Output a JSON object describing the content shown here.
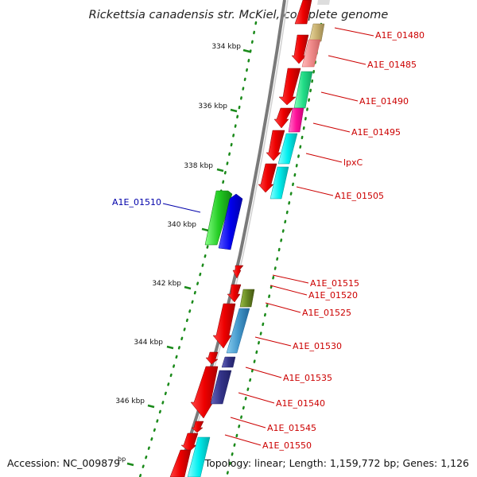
{
  "title": "Rickettsia canadensis str. McKiel, complete genome",
  "footer": {
    "accession": "Accession: NC_009879",
    "unit": "bp",
    "summary": "Topology: linear; Length: 1,159,772 bp; Genes: 1,126"
  },
  "ticks": [
    "334 kbp",
    "336 kbp",
    "338 kbp",
    "340 kbp",
    "342 kbp",
    "344 kbp",
    "346 kbp"
  ],
  "gene_labels": [
    {
      "text": "A1E_01480",
      "color": "#cc0000"
    },
    {
      "text": "A1E_01485",
      "color": "#cc0000"
    },
    {
      "text": "A1E_01490",
      "color": "#cc0000"
    },
    {
      "text": "A1E_01495",
      "color": "#cc0000"
    },
    {
      "text": "lpxC",
      "color": "#cc0000"
    },
    {
      "text": "A1E_01505",
      "color": "#cc0000"
    },
    {
      "text": "A1E_01510",
      "color": "#0000aa"
    },
    {
      "text": "A1E_01515",
      "color": "#cc0000"
    },
    {
      "text": "A1E_01520",
      "color": "#cc0000"
    },
    {
      "text": "A1E_01525",
      "color": "#cc0000"
    },
    {
      "text": "A1E_01530",
      "color": "#cc0000"
    },
    {
      "text": "A1E_01535",
      "color": "#cc0000"
    },
    {
      "text": "A1E_01540",
      "color": "#cc0000"
    },
    {
      "text": "A1E_01545",
      "color": "#cc0000"
    },
    {
      "text": "A1E_01550",
      "color": "#cc0000"
    }
  ],
  "colors": {
    "cds": "#ee0000",
    "backbone": "#7a7a7a",
    "gc_dots": "#1a8a1a",
    "olive": "#c8b070",
    "salmon": "#f08a8a",
    "mint": "#22dd88",
    "magenta": "#ff1199",
    "cyan": "#00eeee",
    "green": "#22cc22",
    "blue": "#0000ee",
    "olive_dark": "#668822",
    "steel": "#4499cc",
    "navy": "#333388"
  }
}
